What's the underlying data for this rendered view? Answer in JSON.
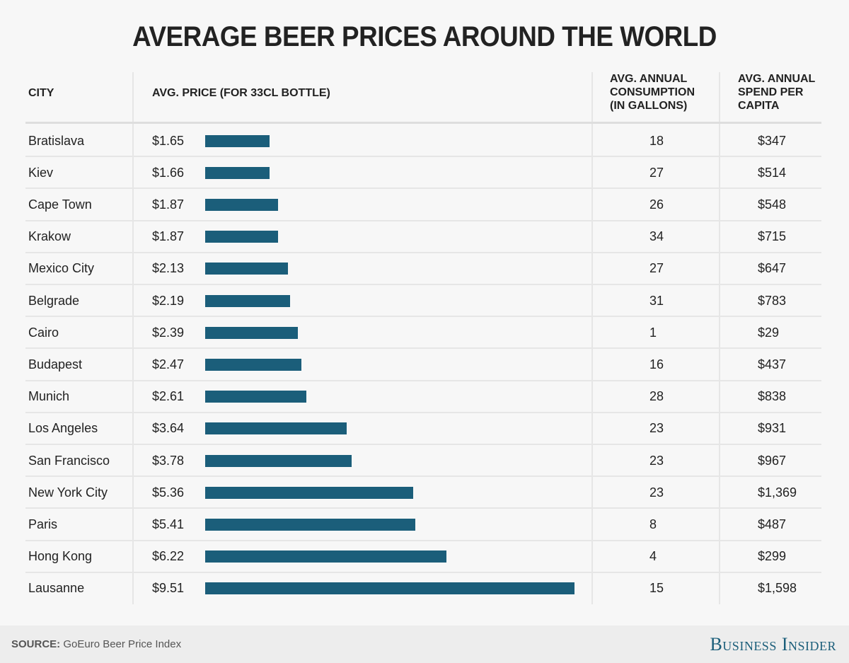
{
  "title": "AVERAGE BEER PRICES AROUND THE WORLD",
  "headers": {
    "city": "CITY",
    "price": "AVG. PRICE (FOR 33CL BOTTLE)",
    "consumption": [
      "AVG. ANNUAL",
      "CONSUMPTION",
      "(IN GALLONS)"
    ],
    "spend": [
      "AVG. ANNUAL",
      "SPEND PER",
      "CAPITA"
    ]
  },
  "footer": {
    "source_label": "SOURCE:",
    "source_text": "GoEuro Beer Price Index",
    "brand": "Business Insider"
  },
  "colors": {
    "bar": "#1b5e7a",
    "brand": "#1b5e7a"
  },
  "chart_data": {
    "type": "table",
    "title": "AVERAGE BEER PRICES AROUND THE WORLD",
    "columns": [
      "CITY",
      "AVG. PRICE (FOR 33CL BOTTLE)",
      "AVG. ANNUAL CONSUMPTION (IN GALLONS)",
      "AVG. ANNUAL SPEND PER CAPITA"
    ],
    "bar_column": "price",
    "bar_range": [
      0,
      9.51
    ],
    "rows": [
      {
        "city": "Bratislava",
        "price": 1.65,
        "price_label": "$1.65",
        "consumption": "18",
        "spend": "$347"
      },
      {
        "city": "Kiev",
        "price": 1.66,
        "price_label": "$1.66",
        "consumption": "27",
        "spend": "$514"
      },
      {
        "city": "Cape Town",
        "price": 1.87,
        "price_label": "$1.87",
        "consumption": "26",
        "spend": "$548"
      },
      {
        "city": "Krakow",
        "price": 1.87,
        "price_label": "$1.87",
        "consumption": "34",
        "spend": "$715"
      },
      {
        "city": "Mexico City",
        "price": 2.13,
        "price_label": "$2.13",
        "consumption": "27",
        "spend": "$647"
      },
      {
        "city": "Belgrade",
        "price": 2.19,
        "price_label": "$2.19",
        "consumption": "31",
        "spend": "$783"
      },
      {
        "city": "Cairo",
        "price": 2.39,
        "price_label": "$2.39",
        "consumption": "1",
        "spend": "$29"
      },
      {
        "city": "Budapest",
        "price": 2.47,
        "price_label": "$2.47",
        "consumption": "16",
        "spend": "$437"
      },
      {
        "city": "Munich",
        "price": 2.61,
        "price_label": "$2.61",
        "consumption": "28",
        "spend": "$838"
      },
      {
        "city": "Los Angeles",
        "price": 3.64,
        "price_label": "$3.64",
        "consumption": "23",
        "spend": "$931"
      },
      {
        "city": "San Francisco",
        "price": 3.78,
        "price_label": "$3.78",
        "consumption": "23",
        "spend": "$967"
      },
      {
        "city": "New York City",
        "price": 5.36,
        "price_label": "$5.36",
        "consumption": "23",
        "spend": "$1,369"
      },
      {
        "city": "Paris",
        "price": 5.41,
        "price_label": "$5.41",
        "consumption": "8",
        "spend": "$487"
      },
      {
        "city": "Hong Kong",
        "price": 6.22,
        "price_label": "$6.22",
        "consumption": "4",
        "spend": "$299"
      },
      {
        "city": "Lausanne",
        "price": 9.51,
        "price_label": "$9.51",
        "consumption": "15",
        "spend": "$1,598"
      }
    ]
  }
}
